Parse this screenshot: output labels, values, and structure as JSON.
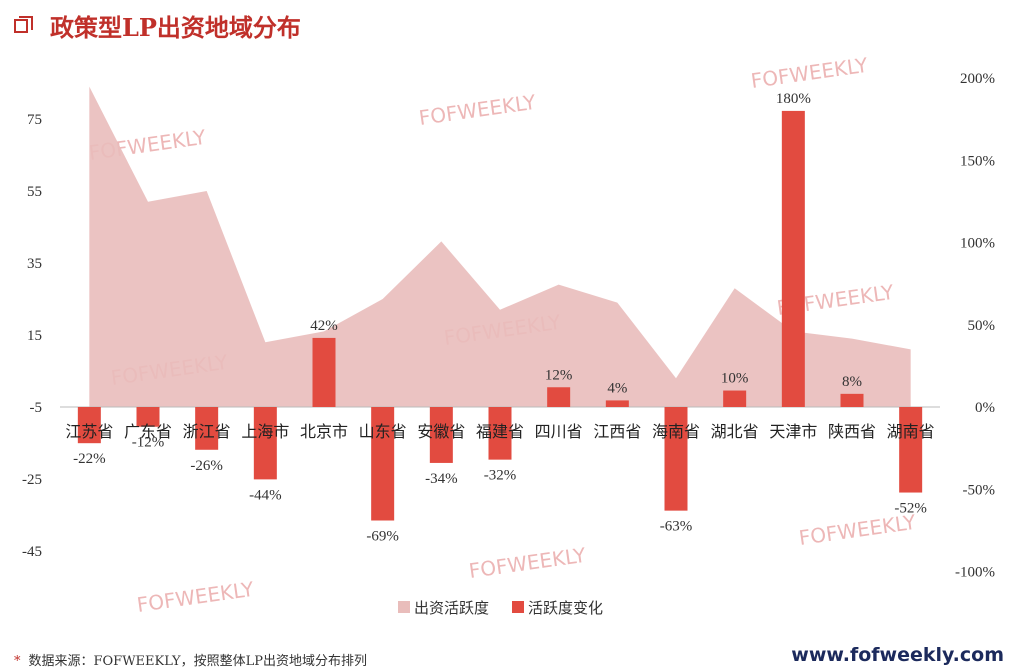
{
  "title": "政策型LP出资地域分布",
  "footnote": {
    "mark": "*",
    "text": "数据来源：FOFWEEKLY，按照整体LP出资地域分布排列"
  },
  "site": "www.fofweekly.com",
  "watermark": "FOFWEEKLY",
  "colors": {
    "title": "#c0302a",
    "area": "#e9bdbb",
    "bar": "#e24b40",
    "axis": "#bbbbbb"
  },
  "chart_data": {
    "type": "bar",
    "categories": [
      "江苏省",
      "广东省",
      "浙江省",
      "上海市",
      "北京市",
      "山东省",
      "安徽省",
      "福建省",
      "四川省",
      "江西省",
      "海南省",
      "湖北省",
      "天津市",
      "陕西省",
      "湖南省"
    ],
    "series": [
      {
        "name": "出资活跃度",
        "type": "area",
        "axis": "left",
        "values": [
          84,
          52,
          55,
          13,
          16,
          25,
          41,
          22,
          29,
          24,
          3,
          28,
          16,
          14,
          11
        ]
      },
      {
        "name": "活跃度变化",
        "type": "bar",
        "axis": "right",
        "values": [
          -22,
          -12,
          -26,
          -44,
          42,
          -69,
          -34,
          -32,
          12,
          4,
          -63,
          10,
          180,
          8,
          -52
        ],
        "labels": [
          "-22%",
          "-12%",
          "-26%",
          "-44%",
          "42%",
          "-69%",
          "-34%",
          "-32%",
          "12%",
          "4%",
          "-63%",
          "10%",
          "180%",
          "8%",
          "-52%"
        ]
      }
    ],
    "left_axis": {
      "ticks": [
        75,
        55,
        35,
        15,
        -5,
        -25,
        -45
      ],
      "ylim": [
        -45,
        90
      ]
    },
    "right_axis": {
      "ticks": [
        "200%",
        "150%",
        "100%",
        "50%",
        "0%",
        "-50%",
        "-100%"
      ],
      "tick_values": [
        200,
        150,
        100,
        50,
        0,
        -50,
        -100
      ],
      "ylim": [
        -100,
        200
      ]
    },
    "legend": [
      {
        "name": "出资活跃度",
        "swatch": "area"
      },
      {
        "name": "活跃度变化",
        "swatch": "bar"
      }
    ],
    "legend_position": "bottom",
    "grid": false
  }
}
